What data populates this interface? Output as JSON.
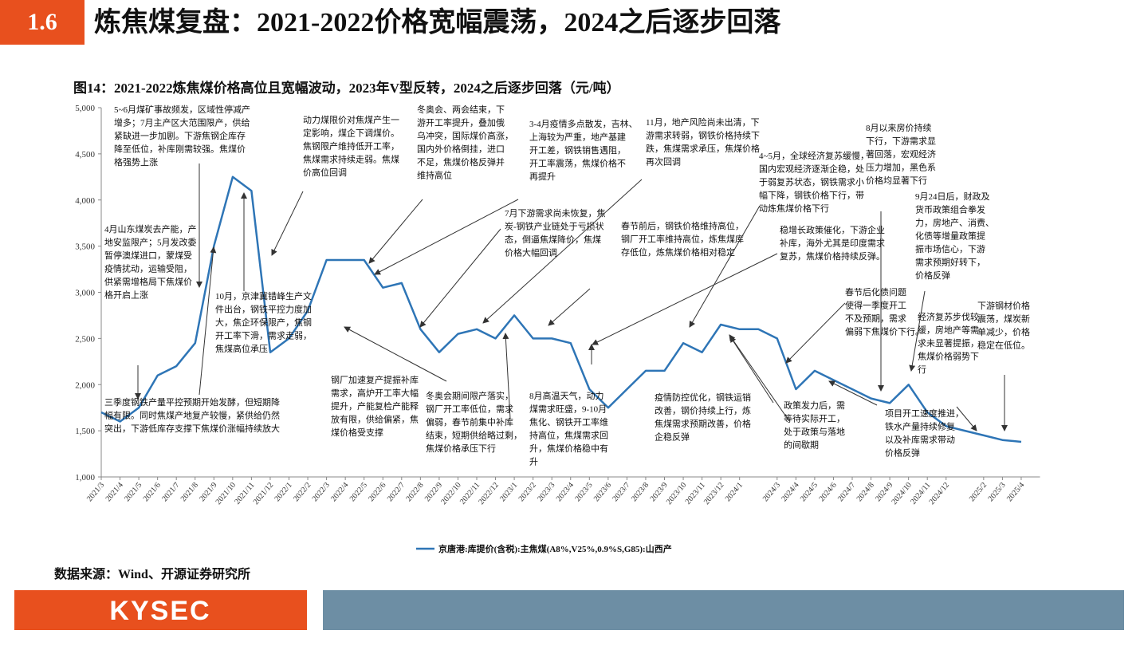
{
  "header": {
    "number": "1.6",
    "title": "炼焦煤复盘：2021-2022价格宽幅震荡，2024之后逐步回落"
  },
  "source": "数据来源：Wind、开源证券研究所",
  "footer": {
    "logo": "KYSEC"
  },
  "chart_data": {
    "type": "line",
    "title": "图14：2021-2022炼焦煤价格高位且宽幅波动，2023年V型反转，2024之后逐步回落（元/吨）",
    "x": [
      "2021/3",
      "2021/4",
      "2021/5",
      "2021/6",
      "2021/7",
      "2021/8",
      "2021/9",
      "2021/10",
      "2021/11",
      "2021/12",
      "2022/1",
      "2022/2",
      "2022/3",
      "2022/4",
      "2022/5",
      "2022/6",
      "2022/7",
      "2022/8",
      "2022/9",
      "2022/10",
      "2022/11",
      "2022/12",
      "2023/1",
      "2023/2",
      "2023/3",
      "2023/4",
      "2023/5",
      "2023/6",
      "2023/7",
      "2023/8",
      "2023/9",
      "2023/10",
      "2023/11",
      "2023/12",
      "2024/1",
      "2024/2",
      "2024/3",
      "2024/4",
      "2024/5",
      "2024/6",
      "2024/7",
      "2024/8",
      "2024/9",
      "2024/10",
      "2024/11",
      "2024/12",
      "2025/1",
      "2025/2",
      "2025/3",
      "2025/4"
    ],
    "series": [
      {
        "name": "京唐港:库提价(含税):主焦煤(A8%,V25%,0.9%S,G85):山西产",
        "color": "#2e75b6",
        "values": [
          1700,
          1600,
          1750,
          2100,
          2200,
          2450,
          3500,
          4250,
          4100,
          2350,
          2500,
          2800,
          3350,
          3350,
          3350,
          3050,
          3100,
          2600,
          2350,
          2550,
          2600,
          2500,
          2750,
          2500,
          2500,
          2450,
          1950,
          1750,
          1950,
          2150,
          2150,
          2450,
          2350,
          2650,
          2600,
          2600,
          2500,
          1950,
          2150,
          2050,
          1950,
          1850,
          1800,
          2000,
          1700,
          1550,
          1500,
          1450,
          1400,
          1380
        ]
      }
    ],
    "xticks": [
      "2021/3",
      "2021/4",
      "2021/5",
      "2021/6",
      "2021/7",
      "2021/8",
      "2021/9",
      "2021/10",
      "2021/11",
      "2021/12",
      "2022/1",
      "2022/2",
      "2022/3",
      "2022/4",
      "2022/5",
      "2022/6",
      "2022/7",
      "2022/8",
      "2022/9",
      "2022/10",
      "2022/11",
      "2022/12",
      "2023/1",
      "2023/2",
      "2023/3",
      "2023/4",
      "2023/5",
      "2023/6",
      "2023/7",
      "2023/8",
      "2023/9",
      "2023/10",
      "2023/11",
      "2023/12",
      "2024/1",
      "2024/3",
      "2024/4",
      "2024/5",
      "2024/6",
      "2024/7",
      "2024/8",
      "2024/9",
      "2024/10",
      "2024/11",
      "2024/12",
      "2025/2",
      "2025/3",
      "2025/4"
    ],
    "ylim": [
      1000,
      5000
    ],
    "yticks": [
      {
        "value": 1000,
        "label": "1,000"
      },
      {
        "value": 1500,
        "label": "1,500"
      },
      {
        "value": 2000,
        "label": "2,000"
      },
      {
        "value": 2500,
        "label": "2,500"
      },
      {
        "value": 3000,
        "label": "3,000"
      },
      {
        "value": 3500,
        "label": "3,500"
      },
      {
        "value": 4000,
        "label": "4,000"
      },
      {
        "value": 4500,
        "label": "4,500"
      },
      {
        "value": 5000,
        "label": "5,000"
      }
    ],
    "grid": false,
    "legend": "bottom",
    "annotations": [
      {
        "lines": [
          "5~6月煤矿事故频发，区域性停减产",
          "增多；7月主产区大范围限产，供给",
          "紧缺进一步加剧。下游焦钢企库存",
          "降至低位，补库刚需较强。焦煤价",
          "格强势上涨"
        ]
      },
      {
        "lines": [
          "4月山东煤炭去产能，产",
          "地安监限产；5月发改委",
          "暂停澳煤进口，蒙煤受",
          "疫情扰动，运输受阻，",
          "供紧需增格局下焦煤价",
          "格开启上涨"
        ]
      },
      {
        "lines": [
          "10月，京津冀错峰生产文",
          "件出台，钢铁平控力度加",
          "大，焦企环保限产，焦钢",
          "开工率下滑，需求走弱，",
          "焦煤高位承压"
        ]
      },
      {
        "lines": [
          "三季度钢铁产量平控预期开始发酵，但短期降",
          "幅有限。同时焦煤产地复产较慢，紧供给仍然",
          "突出，下游低库存支撑下焦煤价涨幅持续放大"
        ]
      },
      {
        "lines": [
          "动力煤限价对焦煤产生一",
          "定影响，煤企下调煤价。",
          "焦钢限产维持低开工率，",
          "焦煤需求持续走弱。焦煤",
          "价高位回调"
        ]
      },
      {
        "lines": [
          "冬奥会、两会结束，下",
          "游开工率提升，叠加俄",
          "乌冲突，国际煤价高涨，",
          "国内外价格倒挂，进口",
          "不足，焦煤价格反弹并",
          "维持高位"
        ]
      },
      {
        "lines": [
          "3-4月疫情多点散发，吉林、",
          "上海较为严重，地产基建",
          "开工差，钢铁销售遇阻，",
          "开工率震荡，焦煤价格不",
          "再提升"
        ]
      },
      {
        "lines": [
          "7月下游需求尚未恢复，焦",
          "炭-钢铁产业链处于亏损状",
          "态，倒逼焦煤降价，焦煤",
          "价格大幅回调"
        ]
      },
      {
        "lines": [
          "11月，地产风险尚未出清，下",
          "游需求转弱，钢铁价格持续下",
          "跌，焦煤需求承压，焦煤价格",
          "再次回调"
        ]
      },
      {
        "lines": [
          "春节前后，钢铁价格维持高位，",
          "钢厂开工率维持高位，炼焦煤库",
          "存低位，炼焦煤价格相对稳定"
        ]
      },
      {
        "lines": [
          "钢厂加速复产提振补库",
          "需求，高炉开工率大幅",
          "提升，产能复检产能释",
          "放有限，供给偏紧，焦",
          "煤价格受支撑"
        ]
      },
      {
        "lines": [
          "冬奥会期间限产落实，",
          "钢厂开工率低位，需求",
          "偏弱，春节前集中补库",
          "结束，短期供给略过剩，",
          "焦煤价格承压下行"
        ]
      },
      {
        "lines": [
          "8月高温天气，动力",
          "煤需求旺盛，9-10月",
          "焦化、钢铁开工率维",
          "持高位，焦煤需求回",
          "升，焦煤价格稳中有",
          "升"
        ]
      },
      {
        "lines": [
          "疫情防控优化，钢铁运销",
          "改善，钢价持续上行，炼",
          "焦煤需求预期改善，价格",
          "企稳反弹"
        ]
      },
      {
        "lines": [
          "4~5月，全球经济复苏缓慢，",
          "国内宏观经济逐渐企稳，处",
          "于弱复苏状态，钢铁需求小",
          "幅下降，钢铁价格下行，带",
          "动炼焦煤价格下行"
        ]
      },
      {
        "lines": [
          "稳增长政策催化，下游企业",
          "补库，海外尤其是印度需求",
          "复苏，焦煤价格持续反弹。"
        ]
      },
      {
        "lines": [
          "8月以来房价持续",
          "下行，下游需求显",
          "著回落，宏观经济",
          "压力增加，黑色系",
          "价格均显著下行"
        ]
      },
      {
        "lines": [
          "9月24日后，财政及",
          "货币政策组合拳发",
          "力，房地产、消费、",
          "化债等增量政策提",
          "振市场信心，下游",
          "需求预期好转下，",
          "价格反弹"
        ]
      },
      {
        "lines": [
          "春节后化债问题",
          "使得一季度开工",
          "不及预期，需求",
          "偏弱下焦煤价下行。"
        ]
      },
      {
        "lines": [
          "政策发力后，需",
          "等待实际开工，",
          "处于政策与落地",
          "的间歇期"
        ]
      },
      {
        "lines": [
          "项目开工速度推进，",
          "铁水产量持续修复",
          "以及补库需求带动",
          "价格反弹"
        ]
      },
      {
        "lines": [
          "经济复苏步伐较",
          "缓，房地产等需",
          "求未显著提振，",
          "焦煤价格弱势下",
          "行"
        ]
      },
      {
        "lines": [
          "下游钢材价格",
          "震荡，煤炭新",
          "单减少，价格",
          "稳定在低位。"
        ]
      }
    ]
  }
}
